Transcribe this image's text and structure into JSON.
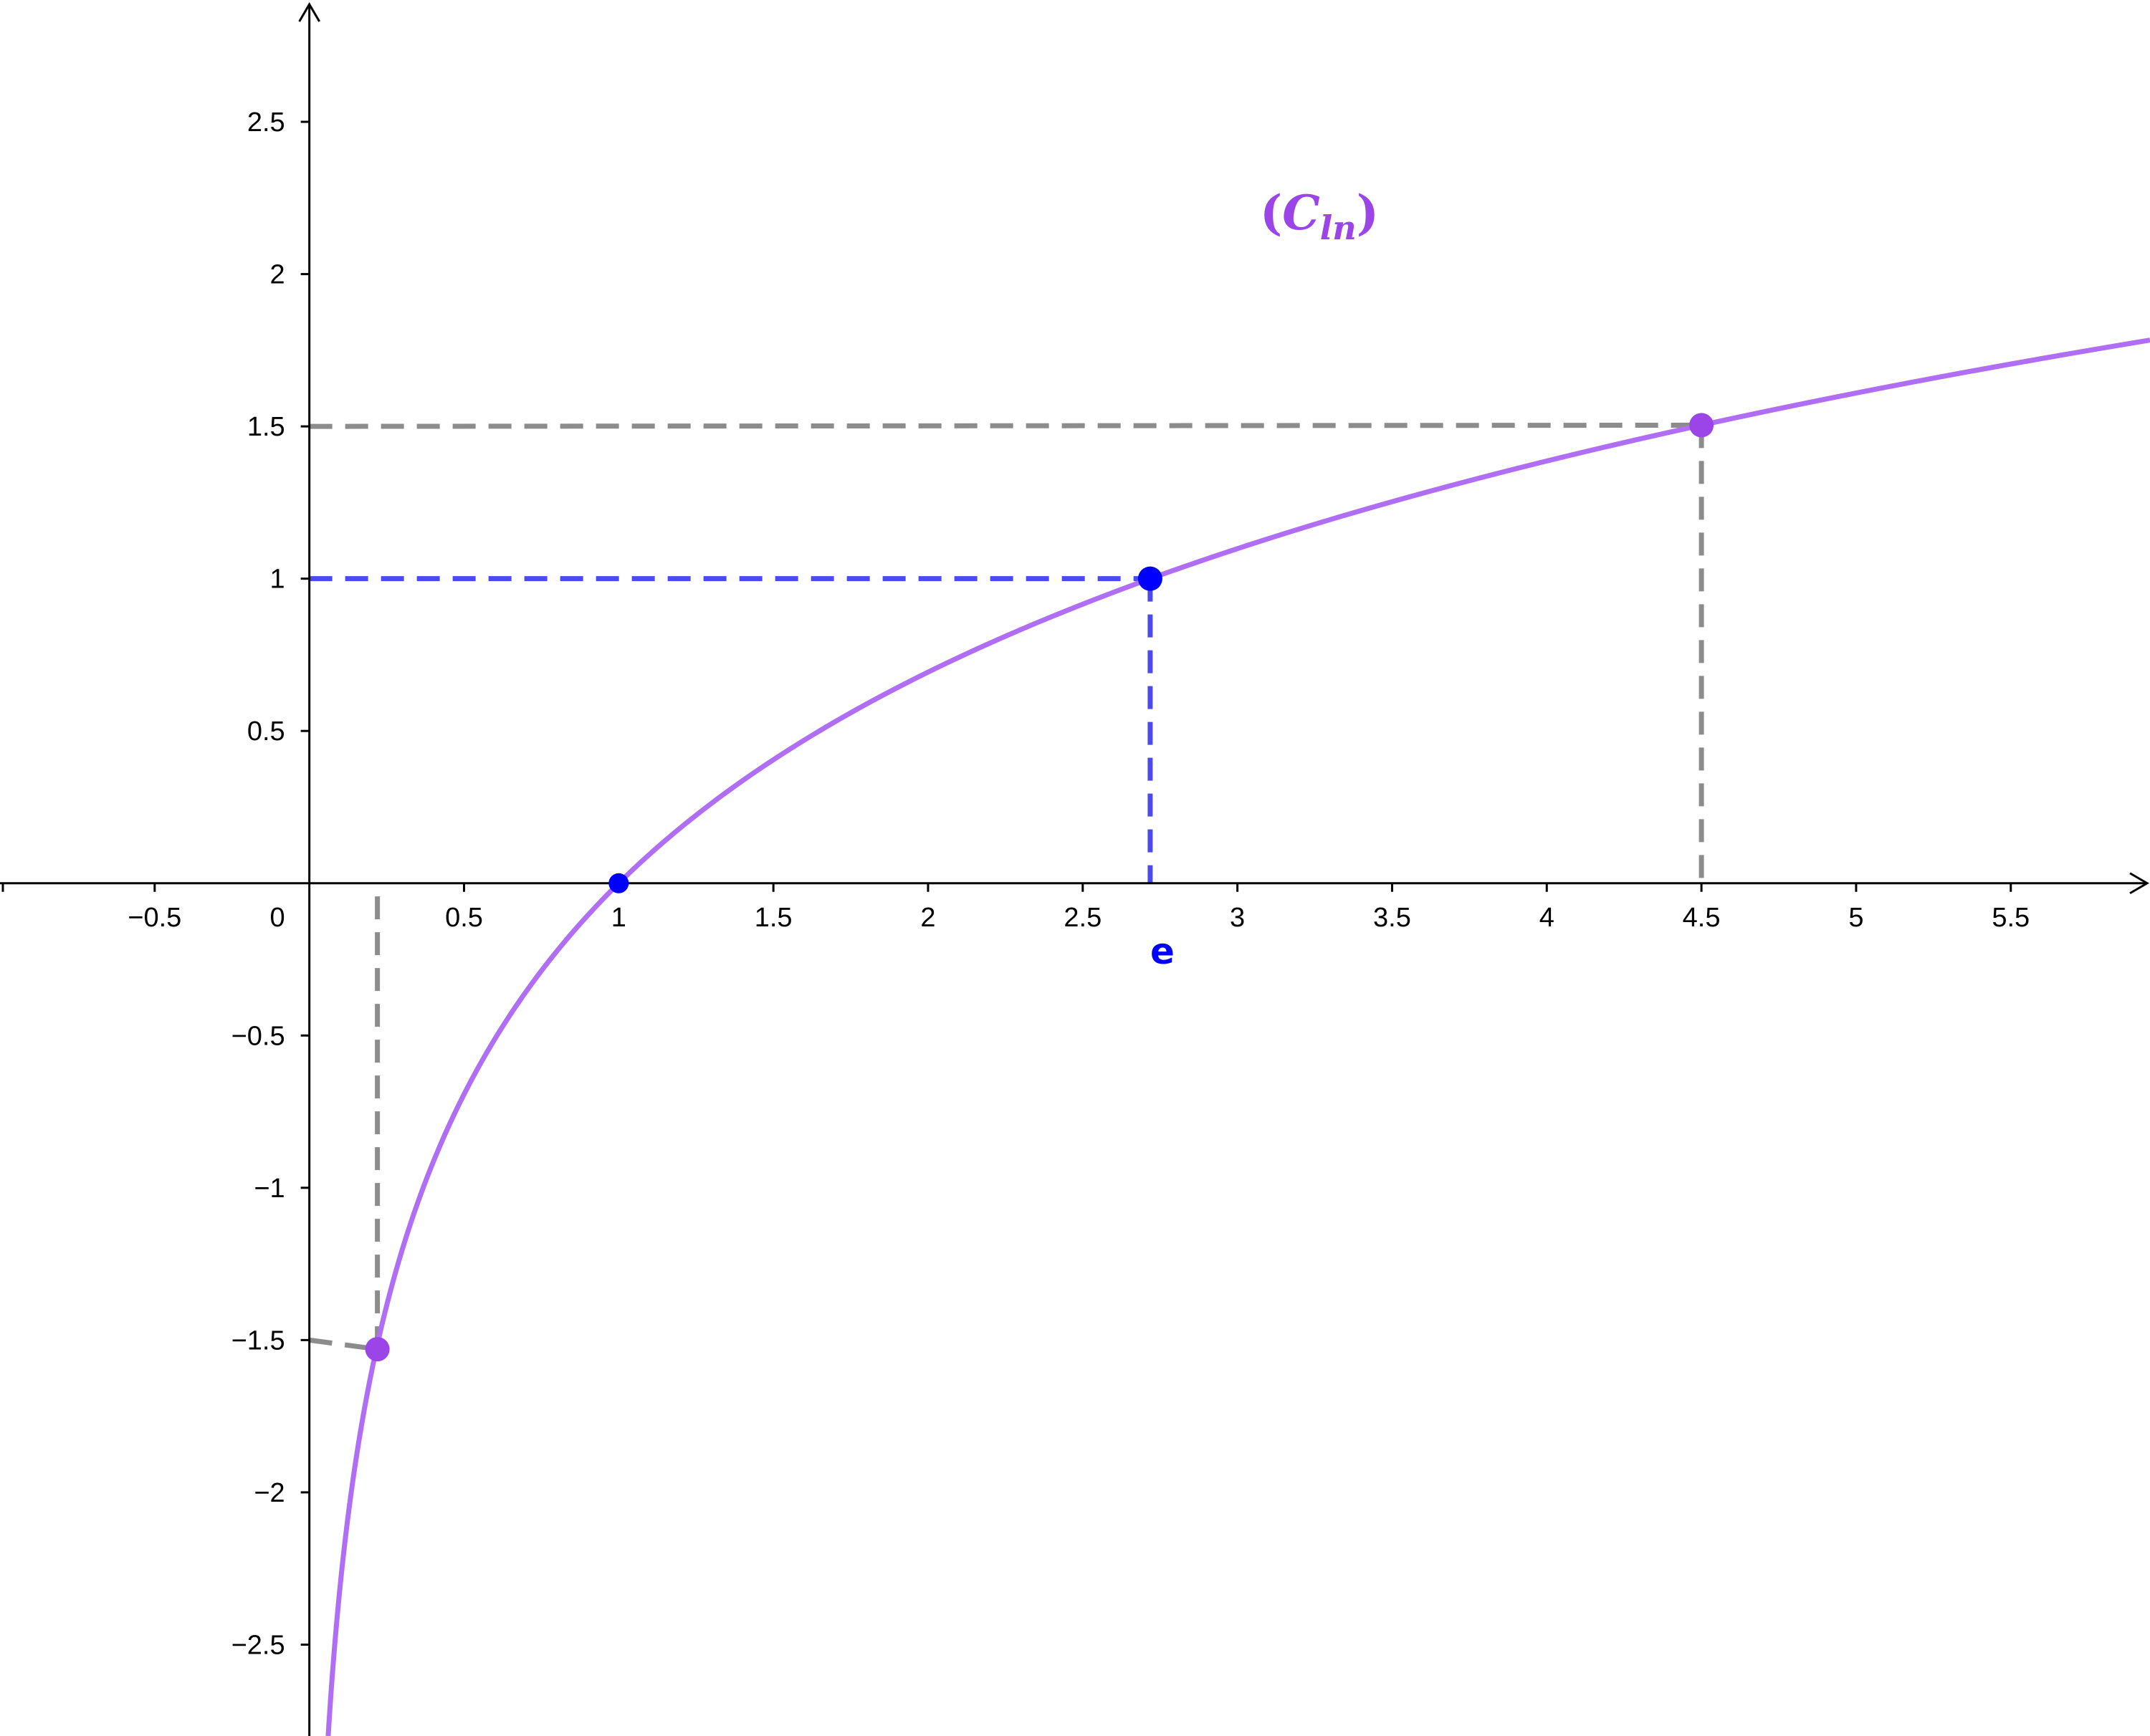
{
  "chart_data": {
    "type": "line",
    "function": "ln(x)",
    "curve_label": {
      "paren_open": "(",
      "letter": "C",
      "subscript": "ln",
      "paren_close": ")"
    },
    "xlim": [
      -1.0,
      5.95
    ],
    "ylim": [
      -2.8,
      2.9
    ],
    "x_ticks": [
      -0.5,
      0.5,
      1,
      1.5,
      2,
      2.5,
      3,
      3.5,
      4,
      4.5,
      5,
      5.5
    ],
    "x_tick_labels": [
      "−0.5",
      "0.5",
      "1",
      "1.5",
      "2",
      "2.5",
      "3",
      "3.5",
      "4",
      "4.5",
      "5",
      "5.5"
    ],
    "y_ticks": [
      2.5,
      2,
      1.5,
      1,
      0.5,
      -0.5,
      -1,
      -1.5,
      -2,
      -2.5
    ],
    "y_tick_labels": [
      "2.5",
      "2",
      "1.5",
      "1",
      "0.5",
      "−0.5",
      "−1",
      "−1.5",
      "−2",
      "−2.5"
    ],
    "origin_label": "0",
    "special_x_label": "e",
    "points": [
      {
        "name": "point-x1",
        "x": 1,
        "y": 0,
        "color": "#0000ff"
      },
      {
        "name": "point-e",
        "x": 2.718,
        "y": 1,
        "color": "#0000ff"
      },
      {
        "name": "point-x4-5",
        "x": 4.5,
        "y": 1.504,
        "color": "#9b45e8"
      },
      {
        "name": "point-x0-22",
        "x": 0.22,
        "y": -1.53,
        "color": "#9b45e8"
      }
    ],
    "guides": [
      {
        "name": "guide-e-horizontal",
        "x1": 0,
        "y1": 1,
        "x2": 2.718,
        "y2": 1,
        "color": "#4a4af0"
      },
      {
        "name": "guide-e-vertical",
        "x1": 2.718,
        "y1": 1,
        "x2": 2.718,
        "y2": 0,
        "color": "#4a4af0"
      },
      {
        "name": "guide-4-5-horizontal",
        "x1": 0,
        "y1": 1.5,
        "x2": 4.5,
        "y2": 1.504,
        "color": "#8c8c8c"
      },
      {
        "name": "guide-4-5-vertical",
        "x1": 4.5,
        "y1": 1.504,
        "x2": 4.5,
        "y2": 0,
        "color": "#8c8c8c"
      },
      {
        "name": "guide-0-22-horizontal",
        "x1": 0,
        "y1": -1.5,
        "x2": 0.22,
        "y2": -1.53,
        "color": "#8c8c8c"
      },
      {
        "name": "guide-0-22-vertical",
        "x1": 0.22,
        "y1": -1.53,
        "x2": 0.22,
        "y2": 0,
        "color": "#8c8c8c"
      }
    ],
    "colors": {
      "curve": "#b06ef5",
      "axis": "#000000"
    }
  }
}
